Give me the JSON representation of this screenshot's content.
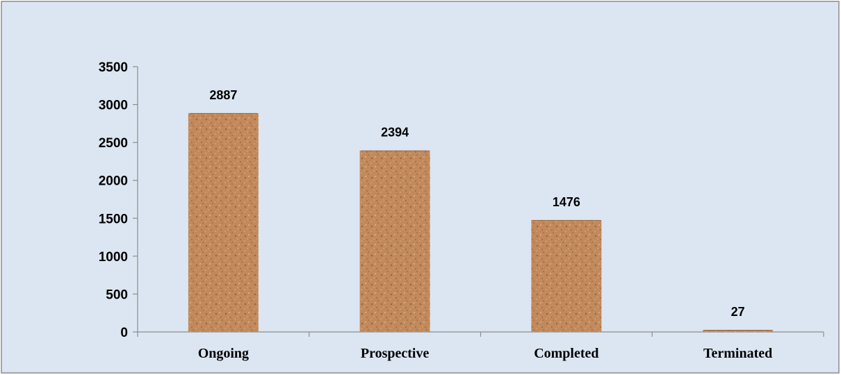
{
  "chart_data": {
    "type": "bar",
    "categories": [
      "Ongoing",
      "Prospective",
      "Completed",
      "Terminated"
    ],
    "values": [
      2887,
      2394,
      1476,
      27
    ],
    "data_labels": [
      "2887",
      "2394",
      "1476",
      "27"
    ],
    "ylim": [
      0,
      3500
    ],
    "yticks": [
      0,
      500,
      1000,
      1500,
      2000,
      2500,
      3000,
      3500
    ],
    "ytick_labels": [
      "0",
      "500",
      "1000",
      "1500",
      "2000",
      "2500",
      "3000",
      "3500"
    ],
    "title": "",
    "xlabel": "",
    "ylabel": "",
    "grid": false,
    "legend": "none",
    "colors": {
      "background": "#dce6f2",
      "border": "#8c8c8c",
      "bar_fill": "#c28a5c",
      "bar_speckle_dark": "#8a5230",
      "bar_speckle_light": "#e0b48a",
      "axis": "#8c8c8c"
    }
  }
}
